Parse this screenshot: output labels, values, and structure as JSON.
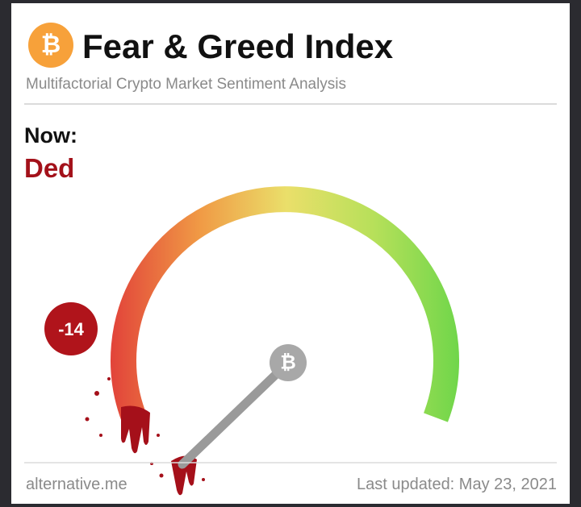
{
  "header": {
    "title": "Fear & Greed Index",
    "subtitle": "Multifactorial Crypto Market Sentiment Analysis"
  },
  "now": {
    "label": "Now:",
    "status": "Ded"
  },
  "gauge": {
    "value": -14
  },
  "footer": {
    "source": "alternative.me",
    "updated": "Last updated: May 23, 2021"
  }
}
